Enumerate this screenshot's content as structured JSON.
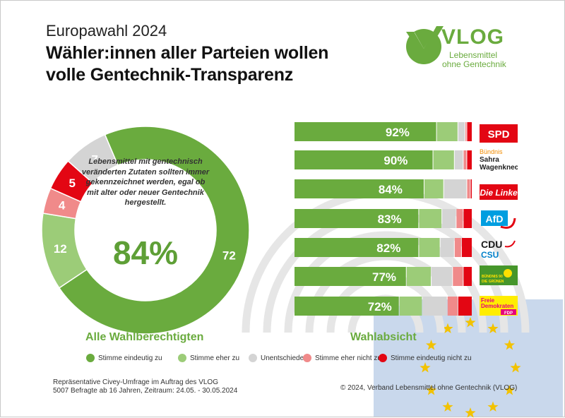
{
  "header": {
    "kicker": "Europawahl 2024",
    "title_line1": "Wähler:innen aller Parteien wollen",
    "title_line2": "volle Gentechnik-Transparenz"
  },
  "logo": {
    "name": "VLOG",
    "sub_line1": "Lebensmittel",
    "sub_line2": "ohne Gentechnik",
    "icon": "v-checkmark-circle-icon"
  },
  "colors": {
    "stimme_eindeutig_zu": "#6aab3e",
    "stimme_eher_zu": "#9ccc78",
    "unentschieden": "#d4d4d4",
    "stimme_eher_nicht_zu": "#f08a8a",
    "stimme_eindeutig_nicht_zu": "#e30613",
    "eu_blue": "#c9d8ec",
    "eu_star": "#f2c200"
  },
  "sections": {
    "left": "Alle Wahlberechtigten",
    "right": "Wahlabsicht"
  },
  "legend": [
    {
      "key": "stimme_eindeutig_zu",
      "label": "Stimme eindeutig zu"
    },
    {
      "key": "stimme_eher_zu",
      "label": "Stimme eher zu"
    },
    {
      "key": "unentschieden",
      "label": "Unentschieden"
    },
    {
      "key": "stimme_eher_nicht_zu",
      "label": "Stimme eher nicht zu"
    },
    {
      "key": "stimme_eindeutig_nicht_zu",
      "label": "Stimme eindeutig nicht zu"
    }
  ],
  "footer": {
    "source_line1": "Repräsentative  Civey-Umfrage  im Auftrag  des VLOG",
    "source_line2": "5007 Befragte  ab 16 Jahren,  Zeitraum: 24.05. - 30.05.2024",
    "copyright": "© 2024, Verband  Lebensmittel  ohne Gentechnik  (VLOG)"
  },
  "chart_data": [
    {
      "type": "pie",
      "subtype": "donut",
      "categories": [
        "Stimme eindeutig zu",
        "Stimme eher zu",
        "Stimme eher nicht zu",
        "Stimme eindeutig nicht zu",
        "Unentschieden"
      ],
      "values": [
        72,
        12,
        4,
        5,
        7
      ],
      "labels": [
        "72",
        "12",
        "4",
        "5",
        "7"
      ],
      "center_text": "Lebensmittel mit gentechnisch veränderten Zutaten sollten immer gekennzeichnet werden, egal ob mit alter oder neuer Gentechnik hergestellt.",
      "center_value": "84%"
    },
    {
      "type": "bar",
      "orientation": "horizontal",
      "stacked": true,
      "categories": [
        "SPD",
        "BSW",
        "Die Linke",
        "AfD",
        "CDU/CSU",
        "Bündnis 90/Die Grünen",
        "FDP"
      ],
      "labels": [
        "92%",
        "90%",
        "84%",
        "83%",
        "82%",
        "77%",
        "72%"
      ],
      "series": [
        {
          "name": "Stimme eindeutig zu",
          "values": [
            80,
            78,
            73,
            70,
            70,
            63,
            59
          ]
        },
        {
          "name": "Stimme eher zu",
          "values": [
            12,
            12,
            11,
            13,
            12,
            14,
            13
          ]
        },
        {
          "name": "Unentschieden",
          "values": [
            4,
            5,
            13,
            8,
            8,
            12,
            14
          ]
        },
        {
          "name": "Stimme eher nicht zu",
          "values": [
            1,
            2,
            2,
            4,
            4,
            6,
            6
          ]
        },
        {
          "name": "Stimme eindeutig nicht zu",
          "values": [
            3,
            3,
            1,
            5,
            6,
            5,
            8
          ]
        }
      ],
      "xlim": [
        0,
        100
      ]
    }
  ],
  "party_logos": [
    {
      "icon": "spd-logo",
      "text": "SPD"
    },
    {
      "icon": "bsw-logo",
      "line1": "Bündnis",
      "line2": "Sahra",
      "line3": "Wagenknecht"
    },
    {
      "icon": "die-linke-logo",
      "text": "Die Linke"
    },
    {
      "icon": "afd-logo",
      "text": "AfD"
    },
    {
      "icon": "cdu-csu-logo",
      "line1": "CDU",
      "line2": "CSU"
    },
    {
      "icon": "gruene-logo",
      "line1": "BÜNDNIS 90",
      "line2": "DIE GRÜNEN"
    },
    {
      "icon": "fdp-logo",
      "line1": "Freie",
      "line2": "Demokraten",
      "line3": "FDP"
    }
  ]
}
